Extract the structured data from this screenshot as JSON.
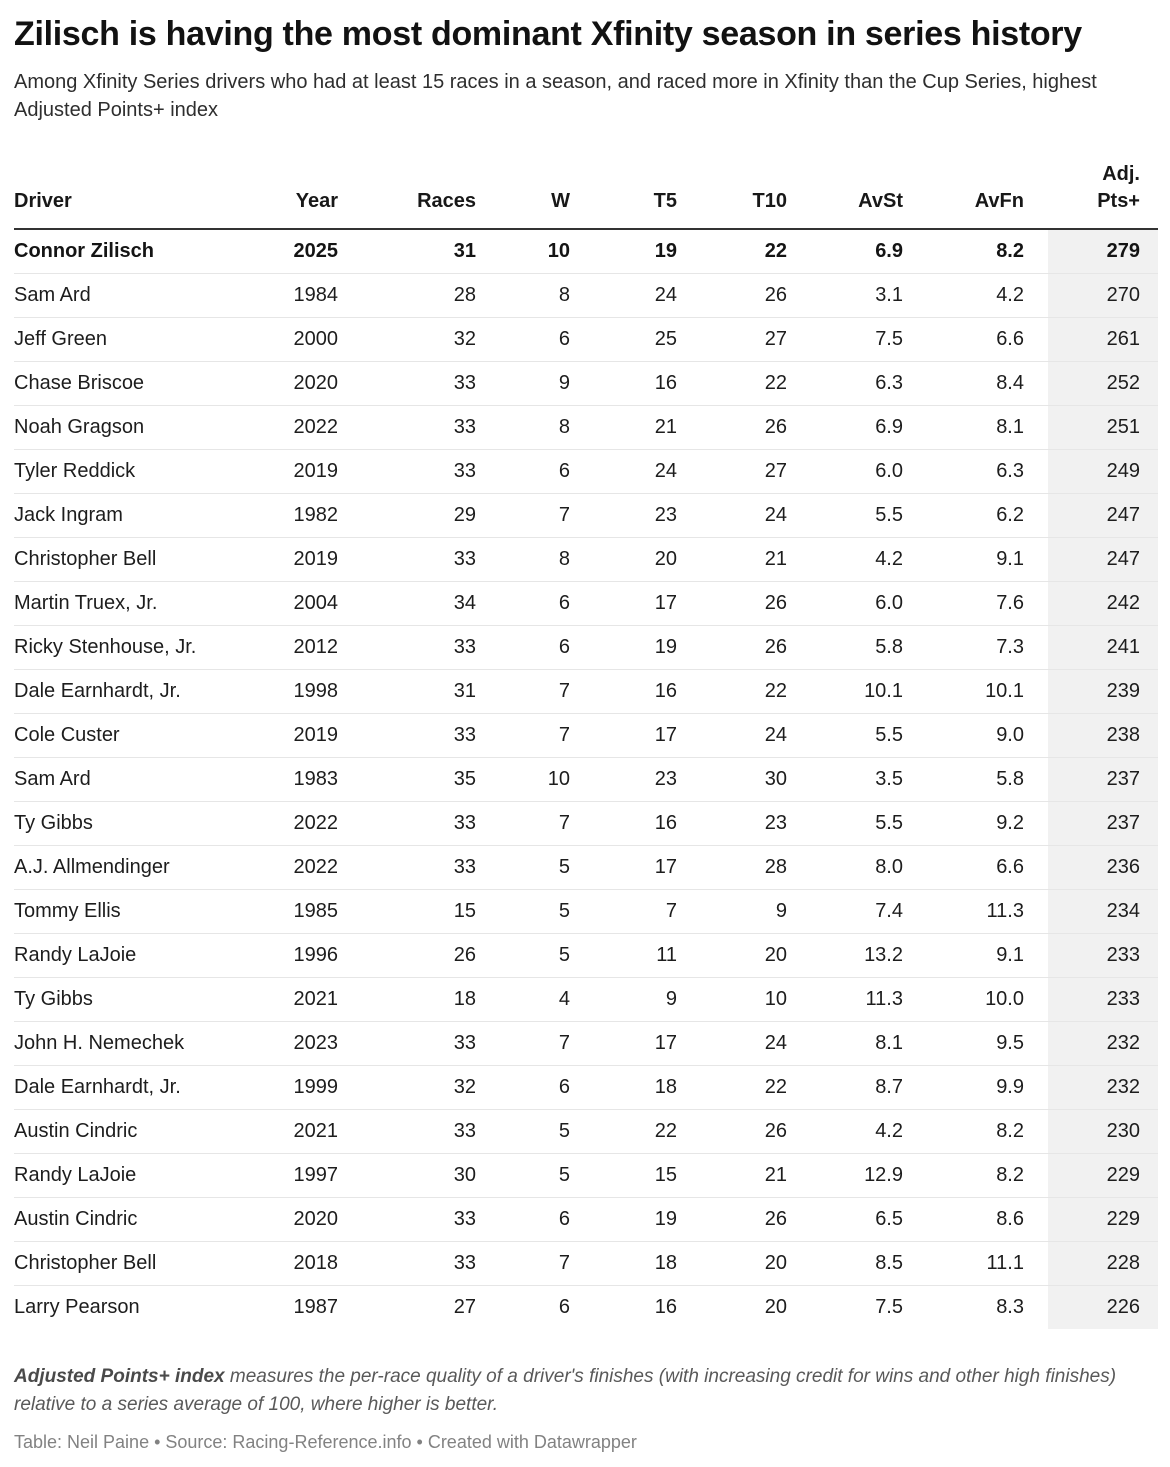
{
  "header": {
    "title": "Zilisch is having the most dominant Xfinity season in series history",
    "subtitle": "Among Xfinity Series drivers who had at least 15 races in a season, and raced more in Xfinity than the Cup Series, highest Adjusted Points+ index"
  },
  "chart_data": {
    "type": "table",
    "title": "Zilisch is having the most dominant Xfinity season in series history",
    "highlight_column": "adj",
    "highlight_color": "#f1f1f1",
    "columns": [
      {
        "key": "driver",
        "label": "Driver"
      },
      {
        "key": "year",
        "label": "Year"
      },
      {
        "key": "races",
        "label": "Races"
      },
      {
        "key": "w",
        "label": "W"
      },
      {
        "key": "t5",
        "label": "T5"
      },
      {
        "key": "t10",
        "label": "T10"
      },
      {
        "key": "avst",
        "label": "AvSt"
      },
      {
        "key": "avfn",
        "label": "AvFn"
      },
      {
        "key": "adj",
        "label": "Adj.\nPts+"
      }
    ],
    "rows": [
      {
        "bold": true,
        "driver": "Connor Zilisch",
        "year": "2025",
        "races": "31",
        "w": "10",
        "t5": "19",
        "t10": "22",
        "avst": "6.9",
        "avfn": "8.2",
        "adj": "279"
      },
      {
        "bold": false,
        "driver": "Sam Ard",
        "year": "1984",
        "races": "28",
        "w": "8",
        "t5": "24",
        "t10": "26",
        "avst": "3.1",
        "avfn": "4.2",
        "adj": "270"
      },
      {
        "bold": false,
        "driver": "Jeff Green",
        "year": "2000",
        "races": "32",
        "w": "6",
        "t5": "25",
        "t10": "27",
        "avst": "7.5",
        "avfn": "6.6",
        "adj": "261"
      },
      {
        "bold": false,
        "driver": "Chase Briscoe",
        "year": "2020",
        "races": "33",
        "w": "9",
        "t5": "16",
        "t10": "22",
        "avst": "6.3",
        "avfn": "8.4",
        "adj": "252"
      },
      {
        "bold": false,
        "driver": "Noah Gragson",
        "year": "2022",
        "races": "33",
        "w": "8",
        "t5": "21",
        "t10": "26",
        "avst": "6.9",
        "avfn": "8.1",
        "adj": "251"
      },
      {
        "bold": false,
        "driver": "Tyler Reddick",
        "year": "2019",
        "races": "33",
        "w": "6",
        "t5": "24",
        "t10": "27",
        "avst": "6.0",
        "avfn": "6.3",
        "adj": "249"
      },
      {
        "bold": false,
        "driver": "Jack Ingram",
        "year": "1982",
        "races": "29",
        "w": "7",
        "t5": "23",
        "t10": "24",
        "avst": "5.5",
        "avfn": "6.2",
        "adj": "247"
      },
      {
        "bold": false,
        "driver": "Christopher Bell",
        "year": "2019",
        "races": "33",
        "w": "8",
        "t5": "20",
        "t10": "21",
        "avst": "4.2",
        "avfn": "9.1",
        "adj": "247"
      },
      {
        "bold": false,
        "driver": "Martin Truex, Jr.",
        "year": "2004",
        "races": "34",
        "w": "6",
        "t5": "17",
        "t10": "26",
        "avst": "6.0",
        "avfn": "7.6",
        "adj": "242"
      },
      {
        "bold": false,
        "driver": "Ricky Stenhouse, Jr.",
        "year": "2012",
        "races": "33",
        "w": "6",
        "t5": "19",
        "t10": "26",
        "avst": "5.8",
        "avfn": "7.3",
        "adj": "241"
      },
      {
        "bold": false,
        "driver": "Dale Earnhardt, Jr.",
        "year": "1998",
        "races": "31",
        "w": "7",
        "t5": "16",
        "t10": "22",
        "avst": "10.1",
        "avfn": "10.1",
        "adj": "239"
      },
      {
        "bold": false,
        "driver": "Cole Custer",
        "year": "2019",
        "races": "33",
        "w": "7",
        "t5": "17",
        "t10": "24",
        "avst": "5.5",
        "avfn": "9.0",
        "adj": "238"
      },
      {
        "bold": false,
        "driver": "Sam Ard",
        "year": "1983",
        "races": "35",
        "w": "10",
        "t5": "23",
        "t10": "30",
        "avst": "3.5",
        "avfn": "5.8",
        "adj": "237"
      },
      {
        "bold": false,
        "driver": "Ty Gibbs",
        "year": "2022",
        "races": "33",
        "w": "7",
        "t5": "16",
        "t10": "23",
        "avst": "5.5",
        "avfn": "9.2",
        "adj": "237"
      },
      {
        "bold": false,
        "driver": "A.J. Allmendinger",
        "year": "2022",
        "races": "33",
        "w": "5",
        "t5": "17",
        "t10": "28",
        "avst": "8.0",
        "avfn": "6.6",
        "adj": "236"
      },
      {
        "bold": false,
        "driver": "Tommy Ellis",
        "year": "1985",
        "races": "15",
        "w": "5",
        "t5": "7",
        "t10": "9",
        "avst": "7.4",
        "avfn": "11.3",
        "adj": "234"
      },
      {
        "bold": false,
        "driver": "Randy LaJoie",
        "year": "1996",
        "races": "26",
        "w": "5",
        "t5": "11",
        "t10": "20",
        "avst": "13.2",
        "avfn": "9.1",
        "adj": "233"
      },
      {
        "bold": false,
        "driver": "Ty Gibbs",
        "year": "2021",
        "races": "18",
        "w": "4",
        "t5": "9",
        "t10": "10",
        "avst": "11.3",
        "avfn": "10.0",
        "adj": "233"
      },
      {
        "bold": false,
        "driver": "John H. Nemechek",
        "year": "2023",
        "races": "33",
        "w": "7",
        "t5": "17",
        "t10": "24",
        "avst": "8.1",
        "avfn": "9.5",
        "adj": "232"
      },
      {
        "bold": false,
        "driver": "Dale Earnhardt, Jr.",
        "year": "1999",
        "races": "32",
        "w": "6",
        "t5": "18",
        "t10": "22",
        "avst": "8.7",
        "avfn": "9.9",
        "adj": "232"
      },
      {
        "bold": false,
        "driver": "Austin Cindric",
        "year": "2021",
        "races": "33",
        "w": "5",
        "t5": "22",
        "t10": "26",
        "avst": "4.2",
        "avfn": "8.2",
        "adj": "230"
      },
      {
        "bold": false,
        "driver": "Randy LaJoie",
        "year": "1997",
        "races": "30",
        "w": "5",
        "t5": "15",
        "t10": "21",
        "avst": "12.9",
        "avfn": "8.2",
        "adj": "229"
      },
      {
        "bold": false,
        "driver": "Austin Cindric",
        "year": "2020",
        "races": "33",
        "w": "6",
        "t5": "19",
        "t10": "26",
        "avst": "6.5",
        "avfn": "8.6",
        "adj": "229"
      },
      {
        "bold": false,
        "driver": "Christopher Bell",
        "year": "2018",
        "races": "33",
        "w": "7",
        "t5": "18",
        "t10": "20",
        "avst": "8.5",
        "avfn": "11.1",
        "adj": "228"
      },
      {
        "bold": false,
        "driver": "Larry Pearson",
        "year": "1987",
        "races": "27",
        "w": "6",
        "t5": "16",
        "t10": "20",
        "avst": "7.5",
        "avfn": "8.3",
        "adj": "226"
      }
    ]
  },
  "footnote": {
    "lead": "Adjusted Points+ index",
    "text": " measures the per-race quality of a driver's finishes (with increasing credit for wins and other high finishes) relative to a series average of 100, where higher is better."
  },
  "source": "Table: Neil Paine • Source: Racing-Reference.info • Created with Datawrapper"
}
